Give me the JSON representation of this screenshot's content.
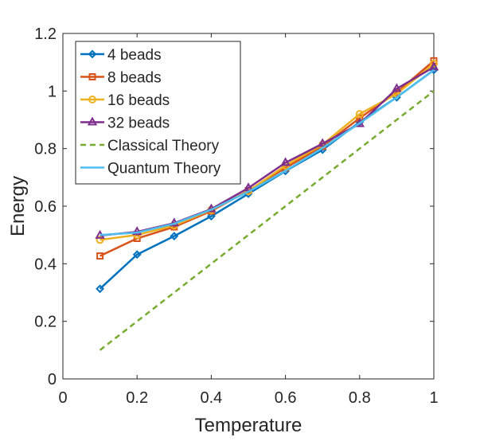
{
  "chart_data": {
    "type": "line",
    "xlabel": "Temperature",
    "ylabel": "Energy",
    "xlim": [
      0,
      1
    ],
    "ylim": [
      0,
      1.2
    ],
    "xticks": [
      0,
      0.2,
      0.4,
      0.6,
      0.8,
      1
    ],
    "xtick_labels": [
      "0",
      "0.2",
      "0.4",
      "0.6",
      "0.8",
      "1"
    ],
    "yticks": [
      0,
      0.2,
      0.4,
      0.6,
      0.8,
      1,
      1.2
    ],
    "ytick_labels": [
      "0",
      "0.2",
      "0.4",
      "0.6",
      "0.8",
      "1",
      "1.2"
    ],
    "grid": false,
    "legend_position": "top-left",
    "x": [
      0.1,
      0.2,
      0.3,
      0.4,
      0.5,
      0.6,
      0.7,
      0.8,
      0.9,
      1.0
    ],
    "series": [
      {
        "name": "4 beads",
        "color": "#0072BD",
        "marker": "diamond",
        "dash": "solid",
        "values": [
          0.313,
          0.432,
          0.496,
          0.565,
          0.643,
          0.722,
          0.796,
          0.892,
          0.978,
          1.073
        ]
      },
      {
        "name": "8 beads",
        "color": "#D95319",
        "marker": "square",
        "dash": "solid",
        "values": [
          0.427,
          0.488,
          0.528,
          0.583,
          0.654,
          0.733,
          0.808,
          0.906,
          0.995,
          1.105
        ]
      },
      {
        "name": "16 beads",
        "color": "#EDB120",
        "marker": "circle",
        "dash": "solid",
        "values": [
          0.483,
          0.5,
          0.533,
          0.587,
          0.652,
          0.741,
          0.814,
          0.92,
          0.99,
          1.095
        ]
      },
      {
        "name": "32 beads",
        "color": "#7E2F8E",
        "marker": "triangle",
        "dash": "solid",
        "values": [
          0.498,
          0.511,
          0.541,
          0.59,
          0.663,
          0.751,
          0.817,
          0.886,
          1.008,
          1.083
        ]
      },
      {
        "name": "Classical Theory",
        "color": "#77AC30",
        "marker": "none",
        "dash": "dashed",
        "values": [
          0.1,
          0.2,
          0.3,
          0.4,
          0.5,
          0.6,
          0.7,
          0.8,
          0.9,
          1.0
        ]
      },
      {
        "name": "Quantum Theory",
        "color": "#4DBEEE",
        "marker": "none",
        "dash": "solid",
        "values": [
          0.5,
          0.508,
          0.539,
          0.588,
          0.65,
          0.723,
          0.802,
          0.888,
          0.978,
          1.073
        ]
      }
    ]
  }
}
